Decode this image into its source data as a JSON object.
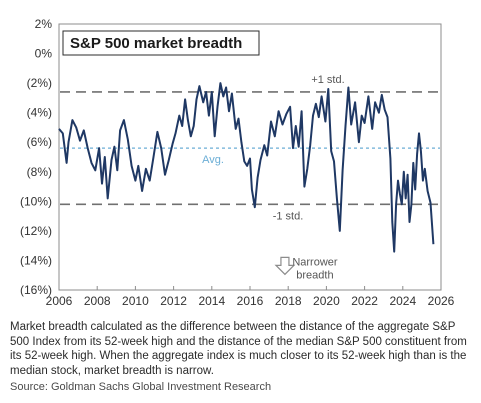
{
  "chart_data": {
    "type": "line",
    "title": "S&P 500 market breadth",
    "xlim": [
      2006,
      2026
    ],
    "ylim": [
      -16,
      2
    ],
    "x_ticks": [
      2006,
      2008,
      2010,
      2012,
      2014,
      2016,
      2018,
      2020,
      2022,
      2024,
      2026
    ],
    "y_ticks": [
      2,
      0,
      -2,
      -4,
      -6,
      -8,
      -10,
      -12,
      -14,
      -16
    ],
    "y_tick_labels": [
      "2%",
      "0%",
      "(2%)",
      "(4%)",
      "(6%)",
      "(8%)",
      "(10%)",
      "(12%)",
      "(14%)",
      "(16%)"
    ],
    "reference_lines": [
      {
        "label": "+1 std.",
        "value": -2.6,
        "color": "#707070"
      },
      {
        "label": "Avg.",
        "value": -6.4,
        "color": "#6baed6"
      },
      {
        "label": "-1 std.",
        "value": -10.2,
        "color": "#707070"
      }
    ],
    "annotation": {
      "text": [
        "Narrower",
        "breadth"
      ],
      "x": 2019.4,
      "y": -14.4
    },
    "series": [
      {
        "color": "#1f3864",
        "points": [
          [
            2006.0,
            -5.1
          ],
          [
            2006.2,
            -5.4
          ],
          [
            2006.4,
            -7.4
          ],
          [
            2006.5,
            -6.0
          ],
          [
            2006.7,
            -4.5
          ],
          [
            2006.9,
            -5.0
          ],
          [
            2007.1,
            -5.9
          ],
          [
            2007.3,
            -5.2
          ],
          [
            2007.5,
            -6.4
          ],
          [
            2007.7,
            -7.4
          ],
          [
            2007.9,
            -7.9
          ],
          [
            2008.1,
            -6.4
          ],
          [
            2008.25,
            -8.8
          ],
          [
            2008.4,
            -7.0
          ],
          [
            2008.55,
            -9.8
          ],
          [
            2008.75,
            -7.2
          ],
          [
            2008.9,
            -6.3
          ],
          [
            2009.05,
            -7.9
          ],
          [
            2009.2,
            -5.2
          ],
          [
            2009.4,
            -4.5
          ],
          [
            2009.6,
            -5.8
          ],
          [
            2009.8,
            -7.6
          ],
          [
            2010.0,
            -8.6
          ],
          [
            2010.15,
            -7.6
          ],
          [
            2010.35,
            -9.3
          ],
          [
            2010.55,
            -7.8
          ],
          [
            2010.75,
            -8.6
          ],
          [
            2010.95,
            -7.0
          ],
          [
            2011.15,
            -5.3
          ],
          [
            2011.35,
            -6.4
          ],
          [
            2011.55,
            -8.2
          ],
          [
            2011.75,
            -7.2
          ],
          [
            2011.95,
            -6.1
          ],
          [
            2012.1,
            -5.4
          ],
          [
            2012.3,
            -4.2
          ],
          [
            2012.45,
            -4.9
          ],
          [
            2012.6,
            -3.1
          ],
          [
            2012.75,
            -4.5
          ],
          [
            2012.9,
            -5.6
          ],
          [
            2013.05,
            -4.9
          ],
          [
            2013.2,
            -3.1
          ],
          [
            2013.35,
            -2.2
          ],
          [
            2013.55,
            -3.3
          ],
          [
            2013.7,
            -2.6
          ],
          [
            2013.85,
            -4.2
          ],
          [
            2014.0,
            -2.6
          ],
          [
            2014.15,
            -5.6
          ],
          [
            2014.3,
            -3.6
          ],
          [
            2014.45,
            -2.0
          ],
          [
            2014.6,
            -2.9
          ],
          [
            2014.75,
            -2.3
          ],
          [
            2014.9,
            -3.9
          ],
          [
            2015.05,
            -2.7
          ],
          [
            2015.25,
            -5.1
          ],
          [
            2015.4,
            -4.4
          ],
          [
            2015.55,
            -6.0
          ],
          [
            2015.7,
            -7.3
          ],
          [
            2015.85,
            -7.6
          ],
          [
            2016.0,
            -7.1
          ],
          [
            2016.1,
            -9.2
          ],
          [
            2016.25,
            -10.4
          ],
          [
            2016.4,
            -8.4
          ],
          [
            2016.55,
            -7.2
          ],
          [
            2016.75,
            -6.2
          ],
          [
            2016.9,
            -6.9
          ],
          [
            2017.1,
            -4.6
          ],
          [
            2017.3,
            -5.6
          ],
          [
            2017.5,
            -3.9
          ],
          [
            2017.7,
            -4.8
          ],
          [
            2017.9,
            -4.1
          ],
          [
            2018.1,
            -3.6
          ],
          [
            2018.25,
            -6.4
          ],
          [
            2018.4,
            -4.9
          ],
          [
            2018.55,
            -6.3
          ],
          [
            2018.7,
            -3.9
          ],
          [
            2018.85,
            -9.0
          ],
          [
            2019.0,
            -7.8
          ],
          [
            2019.15,
            -6.2
          ],
          [
            2019.3,
            -4.2
          ],
          [
            2019.45,
            -3.4
          ],
          [
            2019.6,
            -4.3
          ],
          [
            2019.75,
            -2.9
          ],
          [
            2019.95,
            -4.6
          ],
          [
            2020.1,
            -2.4
          ],
          [
            2020.25,
            -6.6
          ],
          [
            2020.4,
            -7.3
          ],
          [
            2020.55,
            -9.8
          ],
          [
            2020.7,
            -12.0
          ],
          [
            2020.85,
            -7.9
          ],
          [
            2021.0,
            -4.9
          ],
          [
            2021.15,
            -2.3
          ],
          [
            2021.3,
            -4.8
          ],
          [
            2021.5,
            -3.3
          ],
          [
            2021.7,
            -6.0
          ],
          [
            2021.85,
            -4.2
          ],
          [
            2022.0,
            -4.7
          ],
          [
            2022.2,
            -2.9
          ],
          [
            2022.4,
            -5.1
          ],
          [
            2022.55,
            -3.3
          ],
          [
            2022.75,
            -4.0
          ],
          [
            2022.9,
            -2.8
          ],
          [
            2023.05,
            -3.8
          ],
          [
            2023.2,
            -4.3
          ],
          [
            2023.35,
            -7.1
          ],
          [
            2023.45,
            -11.4
          ],
          [
            2023.55,
            -13.4
          ],
          [
            2023.65,
            -10.2
          ],
          [
            2023.75,
            -8.6
          ],
          [
            2023.85,
            -9.5
          ],
          [
            2023.95,
            -10.2
          ],
          [
            2024.05,
            -8.0
          ],
          [
            2024.15,
            -9.8
          ],
          [
            2024.25,
            -8.2
          ],
          [
            2024.35,
            -11.4
          ],
          [
            2024.45,
            -10.2
          ],
          [
            2024.55,
            -7.4
          ],
          [
            2024.65,
            -9.2
          ],
          [
            2024.75,
            -6.8
          ],
          [
            2024.85,
            -5.4
          ],
          [
            2024.95,
            -6.6
          ],
          [
            2025.05,
            -8.6
          ],
          [
            2025.15,
            -7.8
          ],
          [
            2025.3,
            -9.3
          ],
          [
            2025.45,
            -10.1
          ],
          [
            2025.6,
            -12.9
          ]
        ]
      }
    ]
  },
  "caption": "Market breadth calculated as the difference between the distance of the aggregate S&P 500 Index from its 52-week high and the distance of the median S&P 500 constituent from its 52-week high. When the aggregate index is much closer to its 52-week high than is the median stock, market breadth is narrow.",
  "source": "Source: Goldman Sachs Global Investment Research"
}
